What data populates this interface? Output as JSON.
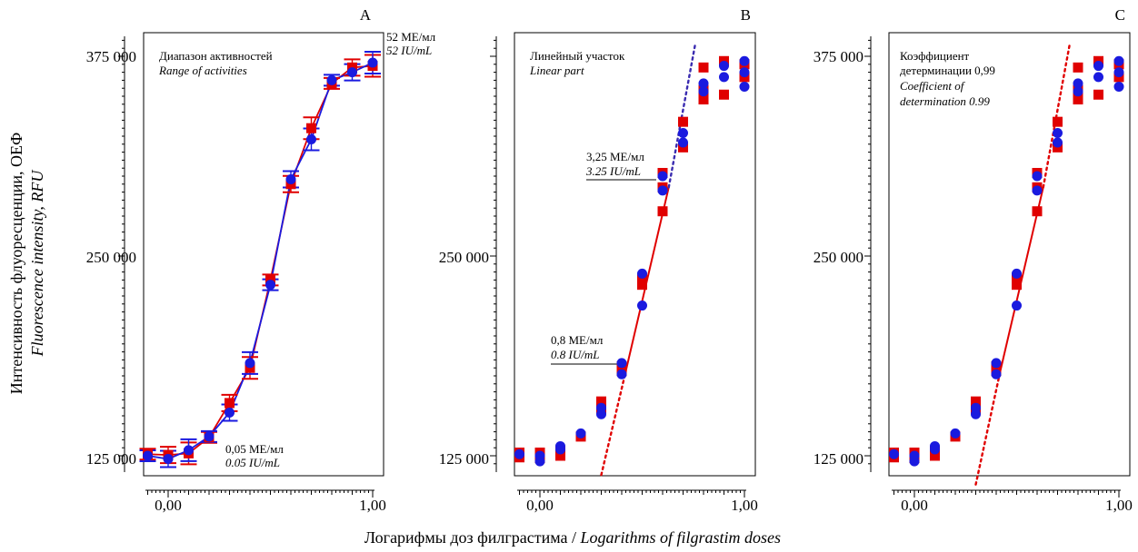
{
  "figure": {
    "ylabel_ru": "Интенсивность флуоресценции, ОЕФ",
    "ylabel_en": "Fluorescence intensity, RFU",
    "xlabel_ru": "Логарифмы доз филграстима",
    "xlabel_sep": " / ",
    "xlabel_en": "Logarithms of filgrastim doses",
    "colors": {
      "series1": "#e00000",
      "series2": "#1a1adf",
      "fit_red": "#e00000",
      "fit_blue": "#3a2bb0"
    }
  },
  "chart_data": [
    {
      "type": "scatter",
      "panel": "A",
      "x_ticks": [
        "0,00",
        "1,00"
      ],
      "y_ticks": [
        "125 000",
        "250 000",
        "375 000"
      ],
      "xlim": [
        -0.11,
        1.07
      ],
      "ylim": [
        118000,
        389000
      ],
      "annotations": [
        {
          "ru": "Диапазон активностей",
          "en": "Range of activities"
        },
        {
          "ru": "52 МЕ/мл",
          "en": "52 IU/mL"
        },
        {
          "ru": "0,05 МЕ/мл",
          "en": "0.05 IU/mL"
        }
      ],
      "series": [
        {
          "marker": "square",
          "color": "#e00000",
          "error_bars": true,
          "x": [
            -0.1,
            0.0,
            0.1,
            0.2,
            0.3,
            0.4,
            0.5,
            0.6,
            0.7,
            0.8,
            0.9,
            1.0
          ],
          "y": [
            126000,
            125500,
            126500,
            136500,
            158000,
            180000,
            235000,
            295000,
            330000,
            358000,
            368000,
            369000
          ]
        },
        {
          "marker": "circle",
          "color": "#1a1adf",
          "error_bars": true,
          "x": [
            -0.1,
            0.0,
            0.1,
            0.2,
            0.3,
            0.4,
            0.5,
            0.6,
            0.7,
            0.8,
            0.9,
            1.0
          ],
          "y": [
            125000,
            123000,
            128500,
            137000,
            152000,
            183000,
            232000,
            298000,
            323000,
            360000,
            365000,
            371000
          ]
        }
      ]
    },
    {
      "type": "scatter",
      "panel": "B",
      "x_ticks": [
        "0,00",
        "1,00"
      ],
      "y_ticks": [
        "125 000",
        "250 000"
      ],
      "xlim": [
        -0.11,
        1.07
      ],
      "ylim": [
        118000,
        389000
      ],
      "annotations": [
        {
          "ru": "Линейный участок",
          "en": "Linear part"
        },
        {
          "ru": "3,25 МЕ/мл",
          "en": "3.25 IU/mL"
        },
        {
          "ru": "0,8 МЕ/мл",
          "en": "0.8 IU/mL"
        }
      ],
      "series": [
        {
          "marker": "square",
          "color": "#e00000",
          "x": [
            -0.1,
            -0.1,
            0.0,
            0.0,
            0.1,
            0.1,
            0.2,
            0.3,
            0.3,
            0.4,
            0.4,
            0.5,
            0.5,
            0.6,
            0.6,
            0.6,
            0.7,
            0.7,
            0.8,
            0.8,
            0.8,
            0.9,
            0.9,
            1.0,
            1.0
          ],
          "y": [
            127000,
            124000,
            127000,
            123500,
            128000,
            125000,
            137000,
            159000,
            154000,
            181000,
            178000,
            236000,
            232000,
            302000,
            293000,
            278000,
            334000,
            318000,
            368000,
            354000,
            348000,
            372000,
            351000,
            370000,
            362000
          ]
        },
        {
          "marker": "circle",
          "color": "#1a1adf",
          "x": [
            -0.1,
            0.0,
            0.0,
            0.1,
            0.1,
            0.2,
            0.3,
            0.3,
            0.4,
            0.4,
            0.5,
            0.5,
            0.6,
            0.6,
            0.7,
            0.7,
            0.8,
            0.8,
            0.9,
            0.9,
            1.0,
            1.0,
            1.0
          ],
          "y": [
            126000,
            125000,
            121500,
            131000,
            129000,
            139000,
            155000,
            151000,
            183000,
            176000,
            239000,
            219000,
            300000,
            291000,
            327000,
            321000,
            358000,
            353000,
            369000,
            362000,
            372000,
            365000,
            356000
          ]
        }
      ],
      "fit_lines": [
        {
          "color": "#e00000",
          "style": "solid",
          "x": [
            0.42,
            0.63
          ],
          "y": [
            178000,
            293000
          ]
        },
        {
          "color": "#e00000",
          "style": "dotted",
          "x": [
            0.3,
            0.42
          ],
          "y": [
            113000,
            178000
          ]
        },
        {
          "color": "#3a2bb0",
          "style": "dotted",
          "x": [
            0.63,
            0.76
          ],
          "y": [
            293000,
            383000
          ]
        }
      ]
    },
    {
      "type": "scatter",
      "panel": "C",
      "x_ticks": [
        "0,00",
        "1,00"
      ],
      "y_ticks": [
        "125 000",
        "250 000",
        "375 000"
      ],
      "xlim": [
        -0.11,
        1.07
      ],
      "ylim": [
        118000,
        389000
      ],
      "annotations": [
        {
          "ru1": "Коэффициент",
          "ru2": "детерминации 0,99",
          "en1": "Coefficient of",
          "en2": "determination 0.99"
        }
      ],
      "series": [
        {
          "marker": "square",
          "color": "#e00000",
          "x": [
            -0.1,
            -0.1,
            0.0,
            0.0,
            0.1,
            0.1,
            0.2,
            0.3,
            0.3,
            0.4,
            0.4,
            0.5,
            0.5,
            0.6,
            0.6,
            0.6,
            0.7,
            0.7,
            0.8,
            0.8,
            0.8,
            0.9,
            0.9,
            1.0,
            1.0
          ],
          "y": [
            127000,
            124000,
            127000,
            123500,
            128000,
            125000,
            137000,
            159000,
            154000,
            181000,
            178000,
            236000,
            232000,
            302000,
            293000,
            278000,
            334000,
            318000,
            368000,
            354000,
            348000,
            372000,
            351000,
            370000,
            362000
          ]
        },
        {
          "marker": "circle",
          "color": "#1a1adf",
          "x": [
            -0.1,
            0.0,
            0.0,
            0.1,
            0.1,
            0.2,
            0.3,
            0.3,
            0.4,
            0.4,
            0.5,
            0.5,
            0.6,
            0.6,
            0.7,
            0.7,
            0.8,
            0.8,
            0.9,
            0.9,
            1.0,
            1.0,
            1.0
          ],
          "y": [
            126000,
            125000,
            121500,
            131000,
            129000,
            139000,
            155000,
            151000,
            183000,
            176000,
            239000,
            219000,
            300000,
            291000,
            327000,
            321000,
            358000,
            353000,
            369000,
            362000,
            372000,
            365000,
            356000
          ]
        }
      ],
      "fit_lines": [
        {
          "color": "#e00000",
          "style": "solid",
          "x": [
            0.42,
            0.63
          ],
          "y": [
            178000,
            293000
          ]
        },
        {
          "color": "#e00000",
          "style": "dotted",
          "x": [
            0.3,
            0.42
          ],
          "y": [
            107000,
            178000
          ]
        },
        {
          "color": "#e00000",
          "style": "dotted",
          "x": [
            0.63,
            0.76
          ],
          "y": [
            293000,
            383000
          ]
        }
      ]
    }
  ]
}
